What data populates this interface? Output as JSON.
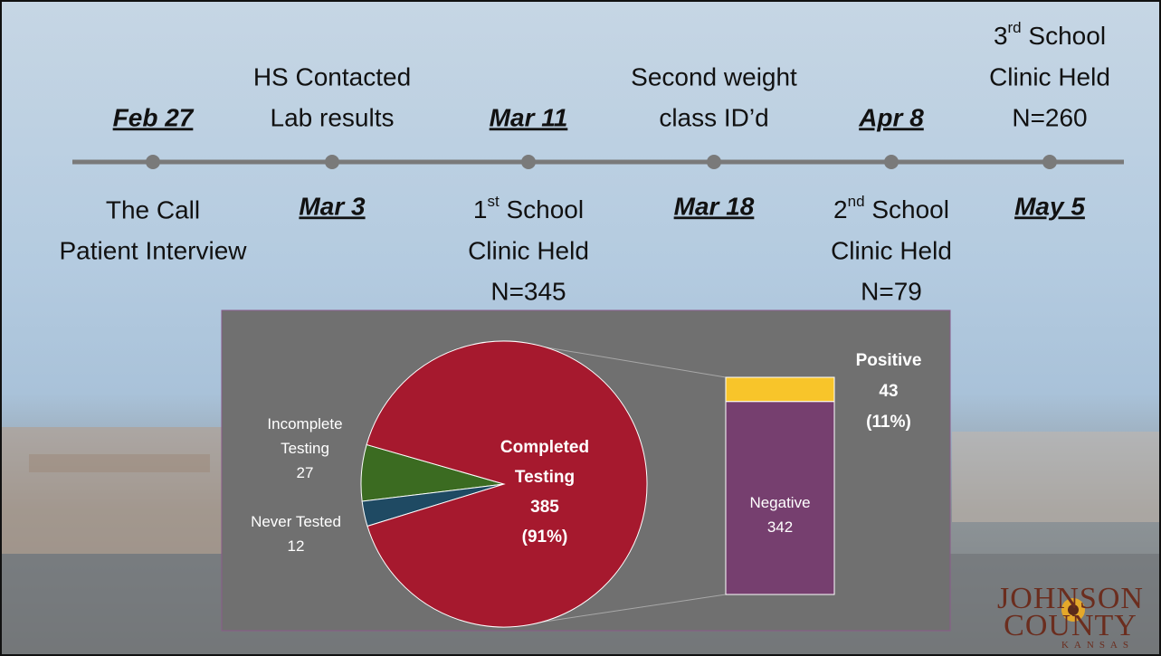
{
  "timeline": {
    "events": [
      {
        "date": "Feb 27",
        "lines": [
          "The Call",
          "Patient Interview"
        ]
      },
      {
        "date": "Mar 3",
        "lines": [
          "HS Contacted",
          "Lab results"
        ]
      },
      {
        "date": "Mar 11",
        "lines": [
          {
            "text": "1",
            "sup": "st",
            "rest": " School"
          },
          "Clinic Held",
          "N=345"
        ]
      },
      {
        "date": "Mar 18",
        "lines": [
          "Second weight",
          "class ID’d"
        ]
      },
      {
        "date": "Apr 8",
        "lines": [
          {
            "text": "2",
            "sup": "nd",
            "rest": " School"
          },
          "Clinic Held",
          "N=79"
        ]
      },
      {
        "date": "May 5",
        "lines": [
          {
            "text": "3",
            "sup": "rd",
            "rest": " School"
          },
          "Clinic Held",
          "N=260"
        ]
      }
    ]
  },
  "chart_data": {
    "type": "pie",
    "categories": [
      "Completed Testing",
      "Incomplete Testing",
      "Never Tested"
    ],
    "values": [
      385,
      27,
      12
    ],
    "percent_labels": [
      "(91%)",
      null,
      null
    ],
    "colors": [
      "#a6192e",
      "#3b6b21",
      "#1f4a63"
    ],
    "breakdown": {
      "categories": [
        "Positive",
        "Negative"
      ],
      "values": [
        43,
        342
      ],
      "percent_labels": [
        "(11%)",
        null
      ],
      "colors": [
        "#f8c52a",
        "#763f6f"
      ]
    }
  },
  "logo": {
    "name": [
      "JOHNSON",
      "COUNTY"
    ],
    "state": "KANSAS"
  }
}
